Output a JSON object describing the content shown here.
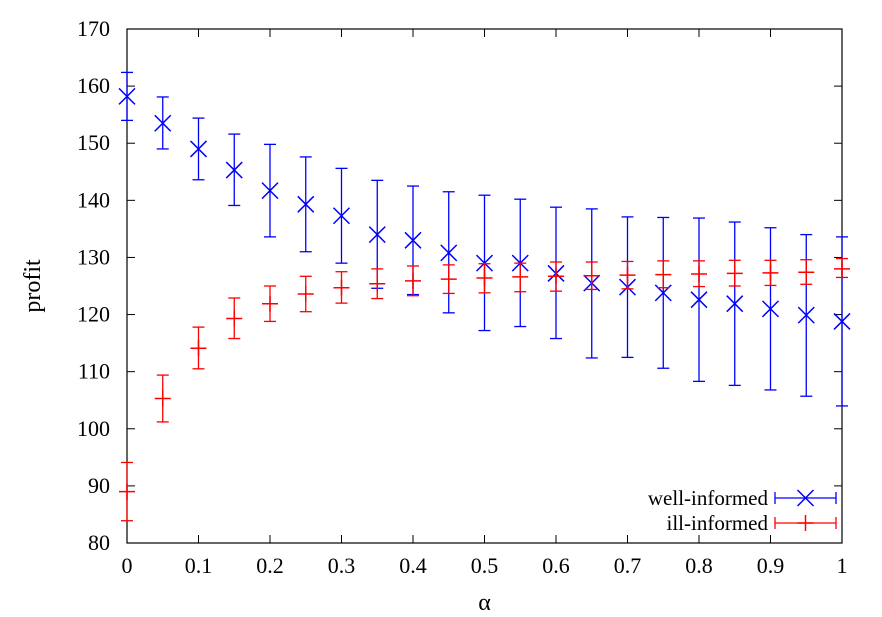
{
  "chart_data": {
    "type": "scatter",
    "title": "",
    "xlabel": "α",
    "ylabel": "profit",
    "xlim": [
      0,
      1
    ],
    "ylim": [
      80,
      170
    ],
    "grid": false,
    "legend_position": "bottom-right",
    "x_ticks": [
      {
        "value": 0,
        "label": "0"
      },
      {
        "value": 0.1,
        "label": "0.1"
      },
      {
        "value": 0.2,
        "label": "0.2"
      },
      {
        "value": 0.3,
        "label": "0.3"
      },
      {
        "value": 0.4,
        "label": "0.4"
      },
      {
        "value": 0.5,
        "label": "0.5"
      },
      {
        "value": 0.6,
        "label": "0.6"
      },
      {
        "value": 0.7,
        "label": "0.7"
      },
      {
        "value": 0.8,
        "label": "0.8"
      },
      {
        "value": 0.9,
        "label": "0.9"
      },
      {
        "value": 1,
        "label": "1"
      }
    ],
    "y_ticks": [
      {
        "value": 80,
        "label": "80"
      },
      {
        "value": 90,
        "label": "90"
      },
      {
        "value": 100,
        "label": "100"
      },
      {
        "value": 110,
        "label": "110"
      },
      {
        "value": 120,
        "label": "120"
      },
      {
        "value": 130,
        "label": "130"
      },
      {
        "value": 140,
        "label": "140"
      },
      {
        "value": 150,
        "label": "150"
      },
      {
        "value": 160,
        "label": "160"
      },
      {
        "value": 170,
        "label": "170"
      }
    ],
    "series": [
      {
        "name": "well-informed",
        "color": "#0000ff",
        "marker": "x",
        "points": [
          {
            "x": 0.0,
            "y": 158.2,
            "low": 154.0,
            "high": 162.4
          },
          {
            "x": 0.05,
            "y": 153.5,
            "low": 149.0,
            "high": 158.1
          },
          {
            "x": 0.1,
            "y": 149.0,
            "low": 143.6,
            "high": 154.4
          },
          {
            "x": 0.15,
            "y": 145.3,
            "low": 139.1,
            "high": 151.6
          },
          {
            "x": 0.2,
            "y": 141.7,
            "low": 133.6,
            "high": 149.8
          },
          {
            "x": 0.25,
            "y": 139.3,
            "low": 131.0,
            "high": 147.6
          },
          {
            "x": 0.3,
            "y": 137.3,
            "low": 129.0,
            "high": 145.6
          },
          {
            "x": 0.35,
            "y": 134.0,
            "low": 124.6,
            "high": 143.5
          },
          {
            "x": 0.4,
            "y": 133.0,
            "low": 123.5,
            "high": 142.5
          },
          {
            "x": 0.45,
            "y": 130.8,
            "low": 120.3,
            "high": 141.5
          },
          {
            "x": 0.5,
            "y": 129.0,
            "low": 117.2,
            "high": 140.9
          },
          {
            "x": 0.55,
            "y": 129.0,
            "low": 117.9,
            "high": 140.2
          },
          {
            "x": 0.6,
            "y": 127.2,
            "low": 115.8,
            "high": 138.8
          },
          {
            "x": 0.65,
            "y": 125.5,
            "low": 112.4,
            "high": 138.5
          },
          {
            "x": 0.7,
            "y": 124.8,
            "low": 112.5,
            "high": 137.1
          },
          {
            "x": 0.75,
            "y": 123.8,
            "low": 110.6,
            "high": 137.0
          },
          {
            "x": 0.8,
            "y": 122.6,
            "low": 108.3,
            "high": 136.9
          },
          {
            "x": 0.85,
            "y": 121.9,
            "low": 107.6,
            "high": 136.2
          },
          {
            "x": 0.9,
            "y": 121.0,
            "low": 106.8,
            "high": 135.2
          },
          {
            "x": 0.95,
            "y": 119.9,
            "low": 105.7,
            "high": 134.0
          },
          {
            "x": 1.0,
            "y": 118.8,
            "low": 104.0,
            "high": 133.6
          }
        ]
      },
      {
        "name": "ill-informed",
        "color": "#ff0000",
        "marker": "+",
        "points": [
          {
            "x": 0.0,
            "y": 89.0,
            "low": 83.9,
            "high": 94.1
          },
          {
            "x": 0.05,
            "y": 105.3,
            "low": 101.2,
            "high": 109.4
          },
          {
            "x": 0.1,
            "y": 114.1,
            "low": 110.5,
            "high": 117.8
          },
          {
            "x": 0.15,
            "y": 119.3,
            "low": 115.8,
            "high": 122.9
          },
          {
            "x": 0.2,
            "y": 121.9,
            "low": 118.8,
            "high": 125.0
          },
          {
            "x": 0.25,
            "y": 123.6,
            "low": 120.5,
            "high": 126.7
          },
          {
            "x": 0.3,
            "y": 124.7,
            "low": 122.0,
            "high": 127.5
          },
          {
            "x": 0.35,
            "y": 125.4,
            "low": 122.8,
            "high": 128.0
          },
          {
            "x": 0.4,
            "y": 125.9,
            "low": 123.3,
            "high": 128.5
          },
          {
            "x": 0.45,
            "y": 126.2,
            "low": 123.7,
            "high": 128.7
          },
          {
            "x": 0.5,
            "y": 126.4,
            "low": 123.8,
            "high": 128.9
          },
          {
            "x": 0.55,
            "y": 126.6,
            "low": 124.0,
            "high": 129.0
          },
          {
            "x": 0.6,
            "y": 126.7,
            "low": 124.1,
            "high": 129.2
          },
          {
            "x": 0.65,
            "y": 126.8,
            "low": 124.4,
            "high": 129.2
          },
          {
            "x": 0.7,
            "y": 126.9,
            "low": 124.5,
            "high": 129.3
          },
          {
            "x": 0.75,
            "y": 127.0,
            "low": 124.7,
            "high": 129.4
          },
          {
            "x": 0.8,
            "y": 127.1,
            "low": 124.9,
            "high": 129.4
          },
          {
            "x": 0.85,
            "y": 127.2,
            "low": 125.0,
            "high": 129.5
          },
          {
            "x": 0.9,
            "y": 127.3,
            "low": 125.1,
            "high": 129.5
          },
          {
            "x": 0.95,
            "y": 127.4,
            "low": 125.3,
            "high": 129.6
          },
          {
            "x": 1.0,
            "y": 128.0,
            "low": 126.5,
            "high": 129.8
          }
        ]
      }
    ]
  }
}
